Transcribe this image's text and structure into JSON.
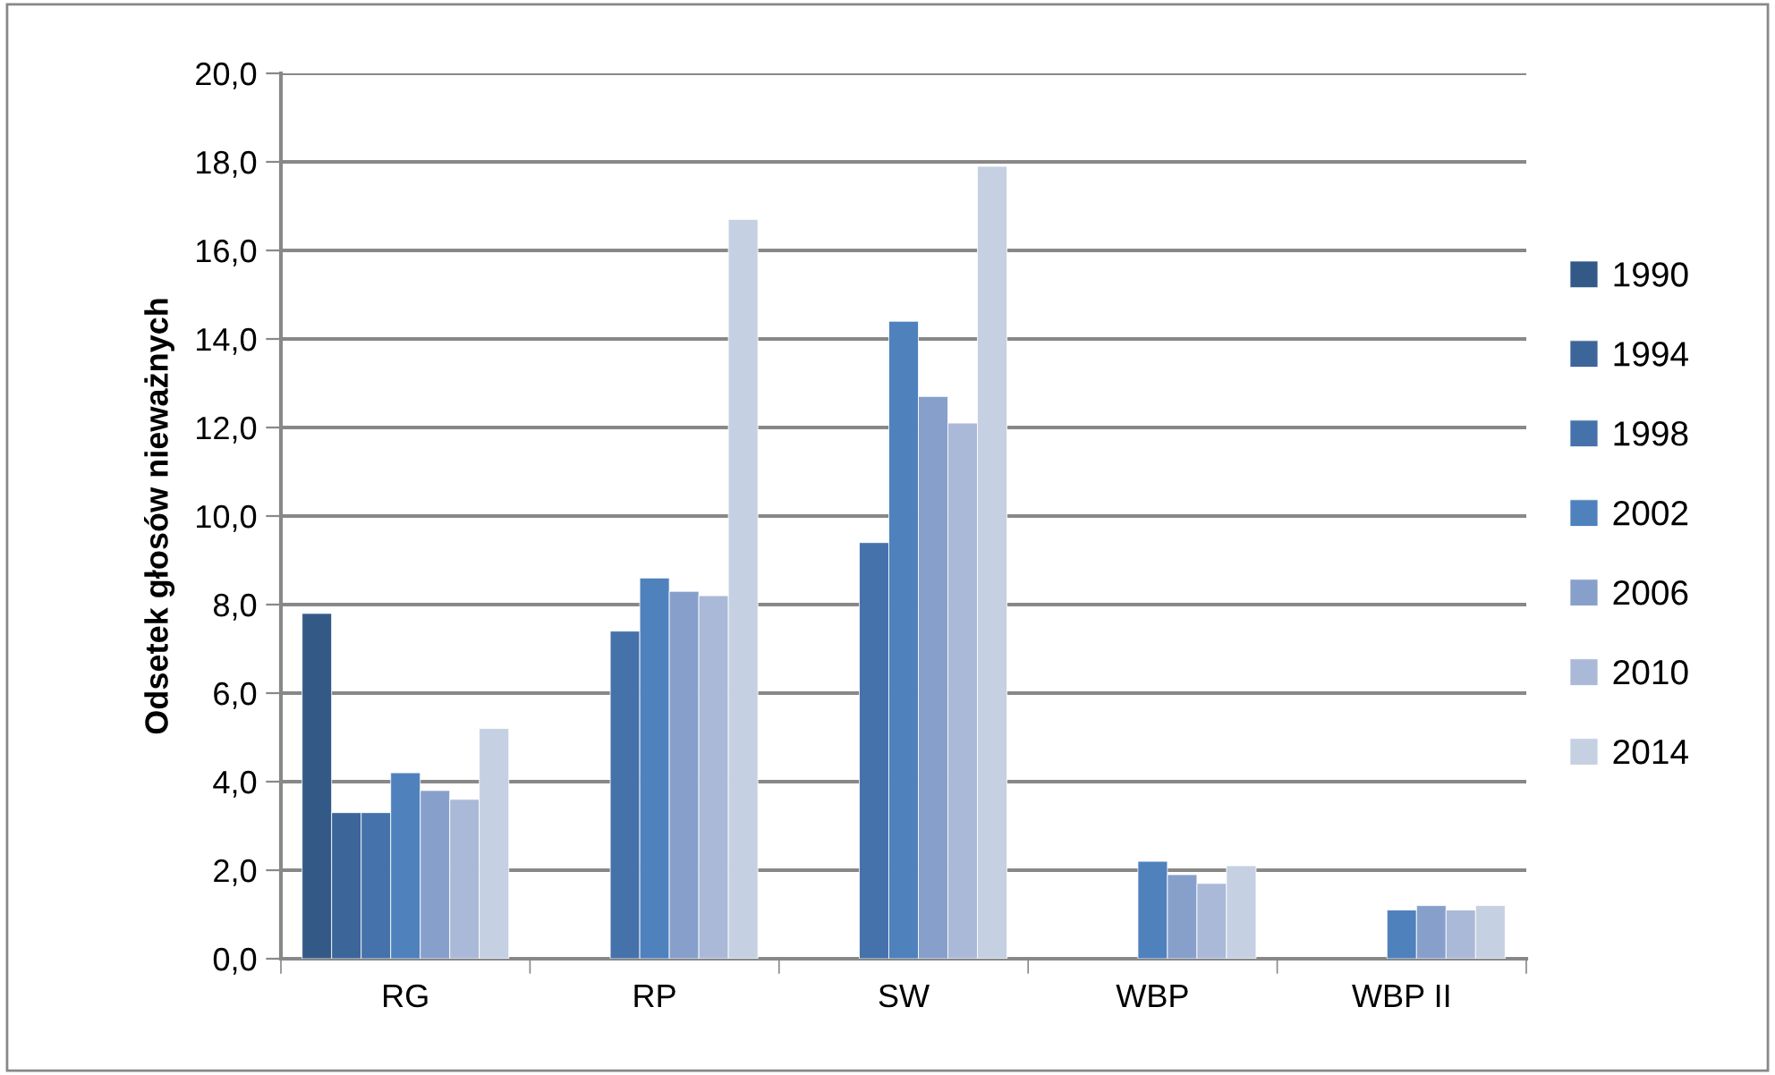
{
  "chart_data": {
    "type": "bar",
    "ylabel": "Odsetek głosów nieważnych",
    "categories": [
      "RG",
      "RP",
      "SW",
      "WBP",
      "WBP II"
    ],
    "series": [
      {
        "name": "1990",
        "color": "#335a87",
        "values": [
          7.8,
          null,
          null,
          null,
          null
        ]
      },
      {
        "name": "1994",
        "color": "#3c6599",
        "values": [
          3.3,
          null,
          null,
          null,
          null
        ]
      },
      {
        "name": "1998",
        "color": "#4572aa",
        "values": [
          3.3,
          7.4,
          9.4,
          null,
          null
        ]
      },
      {
        "name": "2002",
        "color": "#4f81bd",
        "values": [
          4.2,
          8.6,
          14.4,
          2.2,
          1.1
        ]
      },
      {
        "name": "2006",
        "color": "#87a0cb",
        "values": [
          3.8,
          8.3,
          12.7,
          1.9,
          1.2
        ]
      },
      {
        "name": "2010",
        "color": "#aab9d7",
        "values": [
          3.6,
          8.2,
          12.1,
          1.7,
          1.1
        ]
      },
      {
        "name": "2014",
        "color": "#c5d0e2",
        "values": [
          5.2,
          16.7,
          17.9,
          2.1,
          1.2
        ]
      }
    ],
    "ylim": [
      0,
      20
    ],
    "yticks": [
      {
        "value": 0,
        "label": "0,0"
      },
      {
        "value": 2,
        "label": "2,0"
      },
      {
        "value": 4,
        "label": "4,0"
      },
      {
        "value": 6,
        "label": "6,0"
      },
      {
        "value": 8,
        "label": "8,0"
      },
      {
        "value": 10,
        "label": "10,0"
      },
      {
        "value": 12,
        "label": "12,0"
      },
      {
        "value": 14,
        "label": "14,0"
      },
      {
        "value": 16,
        "label": "16,0"
      },
      {
        "value": 18,
        "label": "18,0"
      },
      {
        "value": 20,
        "label": "20,0"
      }
    ],
    "grid": "y",
    "legend": "right"
  }
}
